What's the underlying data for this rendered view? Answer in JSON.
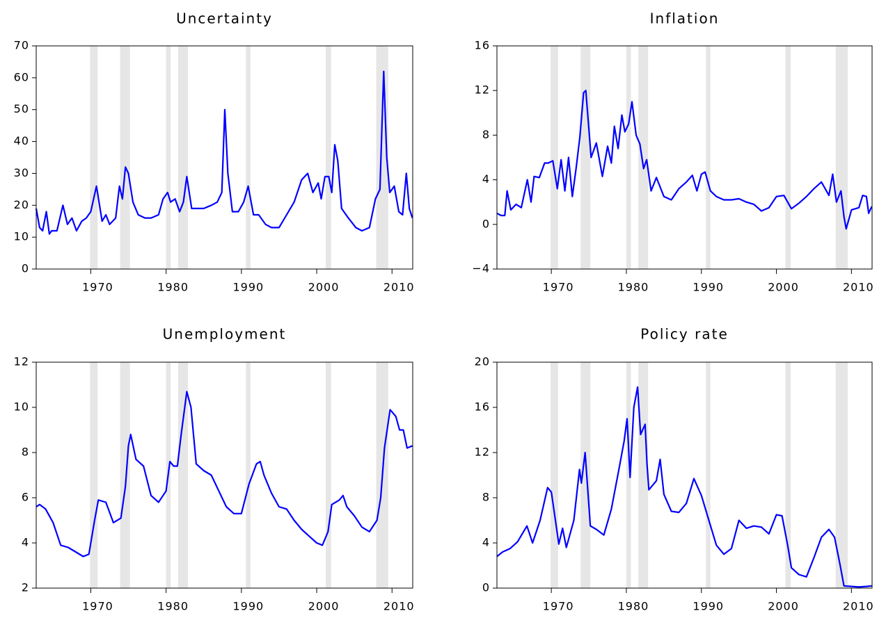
{
  "chart_data": [
    {
      "type": "line",
      "title": "Uncertainty",
      "xlim": [
        1962.75,
        2012.75
      ],
      "xticks": [
        1970,
        1980,
        1990,
        2000,
        2010
      ],
      "ylim": [
        0,
        70
      ],
      "yticks": [
        0,
        10,
        20,
        30,
        40,
        50,
        60,
        70
      ],
      "recessions": [
        [
          1969.9,
          1970.9
        ],
        [
          1973.9,
          1975.2
        ],
        [
          1980.0,
          1980.6
        ],
        [
          1981.6,
          1982.9
        ],
        [
          1990.6,
          1991.2
        ],
        [
          2001.2,
          2001.9
        ],
        [
          2007.9,
          2009.5
        ]
      ],
      "recession_color": "#e6e6e6",
      "series": [
        {
          "color": "#0000ff",
          "x": [
            1962.75,
            1963.2,
            1963.6,
            1964.1,
            1964.5,
            1964.8,
            1965.5,
            1966.3,
            1966.9,
            1967.5,
            1968.1,
            1968.8,
            1969.4,
            1970.0,
            1970.75,
            1971.5,
            1972.0,
            1972.5,
            1973.3,
            1973.8,
            1974.2,
            1974.6,
            1975.0,
            1975.6,
            1976.3,
            1977.2,
            1978.0,
            1979.0,
            1979.6,
            1980.2,
            1980.6,
            1981.2,
            1981.8,
            1982.3,
            1982.75,
            1983.4,
            1984.1,
            1985.0,
            1986.0,
            1986.8,
            1987.4,
            1987.8,
            1988.2,
            1988.8,
            1989.6,
            1990.3,
            1990.9,
            1991.6,
            1992.3,
            1993.2,
            1994.0,
            1995.0,
            1996.0,
            1997.0,
            1998.0,
            1998.8,
            1999.5,
            2000.2,
            2000.6,
            2001.1,
            2001.6,
            2002.0,
            2002.4,
            2002.8,
            2003.3,
            2004.2,
            2005.2,
            2006.0,
            2007.0,
            2007.8,
            2008.4,
            2008.9,
            2009.3,
            2009.7,
            2010.3,
            2010.9,
            2011.4,
            2011.9,
            2012.3,
            2012.7
          ],
          "values": [
            19,
            13,
            12,
            18,
            11,
            12,
            12,
            20,
            14,
            16,
            12,
            15,
            16,
            18,
            26,
            15,
            17,
            14,
            16,
            26,
            22,
            32,
            30,
            21,
            17,
            16,
            16,
            17,
            22,
            24,
            21,
            22,
            18,
            21,
            29,
            19,
            19,
            19,
            20,
            21,
            24,
            50,
            30,
            18,
            18,
            21,
            26,
            17,
            17,
            14,
            13,
            13,
            17,
            21,
            28,
            30,
            24,
            27,
            22,
            29,
            29,
            24,
            39,
            34,
            19,
            16,
            13,
            12,
            13,
            22,
            25,
            62,
            35,
            24,
            26,
            18,
            17,
            30,
            19,
            16
          ]
        }
      ]
    },
    {
      "type": "line",
      "title": "Inflation",
      "xlim": [
        1962.75,
        2012.75
      ],
      "xticks": [
        1970,
        1980,
        1990,
        2000,
        2010
      ],
      "ylim": [
        -4,
        16
      ],
      "yticks": [
        {
          "value": -4,
          "label": "−4"
        },
        0,
        4,
        8,
        12,
        16
      ],
      "recessions": [
        [
          1969.9,
          1970.9
        ],
        [
          1973.9,
          1975.2
        ],
        [
          1980.0,
          1980.6
        ],
        [
          1981.6,
          1982.9
        ],
        [
          1990.6,
          1991.2
        ],
        [
          2001.2,
          2001.9
        ],
        [
          2007.9,
          2009.5
        ]
      ],
      "recession_color": "#e6e6e6",
      "series": [
        {
          "color": "#0000ff",
          "x": [
            1962.75,
            1963.3,
            1963.8,
            1964.1,
            1964.6,
            1965.3,
            1966.0,
            1966.8,
            1967.3,
            1967.7,
            1968.4,
            1969.1,
            1969.6,
            1970.2,
            1970.8,
            1971.3,
            1971.8,
            1972.3,
            1972.8,
            1973.3,
            1973.8,
            1974.3,
            1974.6,
            1975.3,
            1976.0,
            1976.8,
            1977.5,
            1978.0,
            1978.4,
            1978.9,
            1979.4,
            1979.8,
            1980.3,
            1980.75,
            1981.3,
            1981.8,
            1982.3,
            1982.7,
            1983.3,
            1984.0,
            1985.0,
            1986.0,
            1987.0,
            1988.0,
            1988.8,
            1989.4,
            1990.0,
            1990.5,
            1991.2,
            1992.0,
            1993.0,
            1994.0,
            1995.0,
            1996.0,
            1997.0,
            1998.0,
            1999.0,
            2000.0,
            2001.0,
            2002.0,
            2003.0,
            2004.0,
            2005.0,
            2006.0,
            2007.0,
            2007.5,
            2008.0,
            2008.6,
            2009.0,
            2009.3,
            2010.0,
            2011.0,
            2011.5,
            2012.0,
            2012.3,
            2012.7
          ],
          "values": [
            1,
            0.8,
            0.8,
            3,
            1.3,
            1.8,
            1.5,
            4,
            2,
            4.3,
            4.2,
            5.5,
            5.5,
            5.7,
            3.2,
            5.8,
            3,
            6,
            2.5,
            5,
            7.8,
            11.8,
            12,
            6,
            7.3,
            4.3,
            7,
            5.5,
            8.8,
            6.8,
            9.8,
            8.3,
            9,
            11,
            8,
            7.2,
            5,
            5.8,
            3,
            4.2,
            2.5,
            2.2,
            3.2,
            3.8,
            4.4,
            3,
            4.5,
            4.7,
            3,
            2.5,
            2.2,
            2.2,
            2.3,
            2,
            1.8,
            1.2,
            1.5,
            2.5,
            2.6,
            1.4,
            1.9,
            2.5,
            3.2,
            3.8,
            2.6,
            4.5,
            2,
            3,
            0.7,
            -0.4,
            1.3,
            1.5,
            2.6,
            2.5,
            1,
            1.6
          ]
        }
      ]
    },
    {
      "type": "line",
      "title": "Unemployment",
      "xlim": [
        1962.75,
        2012.75
      ],
      "xticks": [
        1970,
        1980,
        1990,
        2000,
        2010
      ],
      "ylim": [
        2,
        12
      ],
      "yticks": [
        2,
        4,
        6,
        8,
        10,
        12
      ],
      "recessions": [
        [
          1969.9,
          1970.9
        ],
        [
          1973.9,
          1975.2
        ],
        [
          1980.0,
          1980.6
        ],
        [
          1981.6,
          1982.9
        ],
        [
          1990.6,
          1991.2
        ],
        [
          2001.2,
          2001.9
        ],
        [
          2007.9,
          2009.5
        ]
      ],
      "recession_color": "#e6e6e6",
      "series": [
        {
          "color": "#0000ff",
          "x": [
            1962.75,
            1963.2,
            1964.0,
            1965.0,
            1966.0,
            1967.0,
            1968.0,
            1969.0,
            1969.75,
            1970.5,
            1971.0,
            1972.0,
            1973.0,
            1974.0,
            1974.6,
            1975.0,
            1975.3,
            1976.0,
            1977.0,
            1978.0,
            1979.0,
            1980.0,
            1980.5,
            1981.0,
            1981.5,
            1982.0,
            1982.75,
            1983.3,
            1984.0,
            1985.0,
            1986.0,
            1987.0,
            1988.0,
            1989.0,
            1990.0,
            1991.0,
            1992.0,
            1992.5,
            1993.0,
            1994.0,
            1995.0,
            1996.0,
            1997.0,
            1998.0,
            1999.0,
            2000.0,
            2000.75,
            2001.5,
            2002.0,
            2003.0,
            2003.5,
            2004.0,
            2005.0,
            2006.0,
            2007.0,
            2008.0,
            2008.5,
            2009.0,
            2009.75,
            2010.5,
            2011.0,
            2011.5,
            2012.0,
            2012.7
          ],
          "values": [
            5.6,
            5.7,
            5.5,
            4.9,
            3.9,
            3.8,
            3.6,
            3.4,
            3.5,
            5,
            5.9,
            5.8,
            4.9,
            5.1,
            6.5,
            8.3,
            8.8,
            7.7,
            7.4,
            6.1,
            5.8,
            6.3,
            7.6,
            7.4,
            7.4,
            8.8,
            10.7,
            10,
            7.5,
            7.2,
            7,
            6.3,
            5.6,
            5.3,
            5.3,
            6.6,
            7.5,
            7.6,
            7,
            6.2,
            5.6,
            5.5,
            5,
            4.6,
            4.3,
            4,
            3.9,
            4.5,
            5.7,
            5.9,
            6.1,
            5.6,
            5.2,
            4.7,
            4.5,
            5,
            6,
            8.2,
            9.9,
            9.6,
            9,
            9,
            8.2,
            8.3
          ]
        }
      ]
    },
    {
      "type": "line",
      "title": "Policy rate",
      "xlim": [
        1962.75,
        2012.75
      ],
      "xticks": [
        1970,
        1980,
        1990,
        2000,
        2010
      ],
      "ylim": [
        0,
        20
      ],
      "yticks": [
        0,
        4,
        8,
        12,
        16,
        20
      ],
      "recessions": [
        [
          1969.9,
          1970.9
        ],
        [
          1973.9,
          1975.2
        ],
        [
          1980.0,
          1980.6
        ],
        [
          1981.6,
          1982.9
        ],
        [
          1990.6,
          1991.2
        ],
        [
          2001.2,
          2001.9
        ],
        [
          2007.9,
          2009.5
        ]
      ],
      "recession_color": "#e6e6e6",
      "series": [
        {
          "color": "#0000ff",
          "x": [
            1962.75,
            1963.5,
            1964.5,
            1965.5,
            1966.75,
            1967.5,
            1968.5,
            1969.5,
            1970.0,
            1971.0,
            1971.5,
            1972.0,
            1973.0,
            1973.75,
            1974.0,
            1974.5,
            1975.2,
            1976.0,
            1977.0,
            1978.0,
            1979.0,
            1979.7,
            1980.1,
            1980.5,
            1981.0,
            1981.5,
            1981.9,
            1982.5,
            1982.75,
            1983.0,
            1984.0,
            1984.5,
            1985.0,
            1986.0,
            1987.0,
            1988.0,
            1989.0,
            1990.0,
            1991.0,
            1992.0,
            1993.0,
            1994.0,
            1995.0,
            1996.0,
            1997.0,
            1998.0,
            1999.0,
            2000.0,
            2000.75,
            2001.5,
            2002.0,
            2003.0,
            2004.0,
            2005.0,
            2006.0,
            2007.0,
            2007.75,
            2008.5,
            2009.0,
            2010.0,
            2011.0,
            2012.0,
            2012.7
          ],
          "values": [
            2.8,
            3.2,
            3.5,
            4.1,
            5.5,
            4,
            6,
            8.9,
            8.5,
            3.9,
            5.3,
            3.6,
            6,
            10.5,
            9.3,
            12,
            5.5,
            5.2,
            4.7,
            7,
            10.5,
            13,
            15,
            9.8,
            16,
            17.8,
            13.6,
            14.5,
            11,
            8.7,
            9.5,
            11.4,
            8.3,
            6.8,
            6.7,
            7.5,
            9.7,
            8.2,
            6,
            3.8,
            3,
            3.5,
            6,
            5.3,
            5.5,
            5.4,
            4.8,
            6.5,
            6.4,
            3.8,
            1.8,
            1.2,
            1,
            2.7,
            4.5,
            5.2,
            4.5,
            2,
            0.2,
            0.15,
            0.1,
            0.15,
            0.2
          ]
        }
      ]
    }
  ]
}
